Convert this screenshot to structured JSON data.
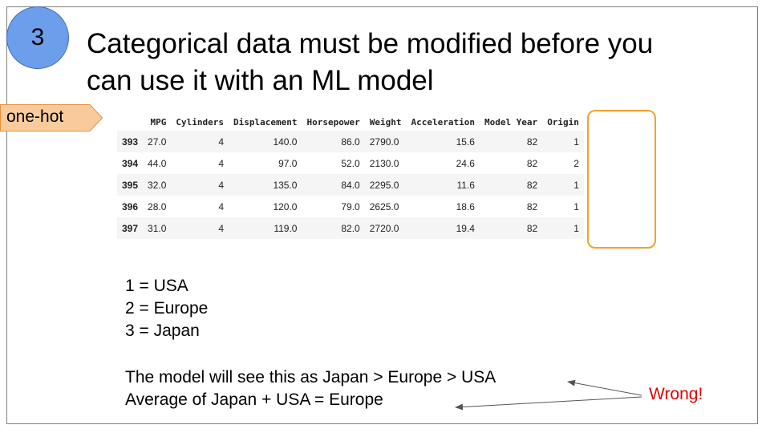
{
  "badge": {
    "number": "3"
  },
  "title": {
    "line1": "Categorical data must be modified before you",
    "line2": "can use it with an ML model"
  },
  "tag": {
    "label": "one-hot"
  },
  "table": {
    "columns": [
      "",
      "MPG",
      "Cylinders",
      "Displacement",
      "Horsepower",
      "Weight",
      "Acceleration",
      "Model Year",
      "Origin"
    ],
    "rows": [
      [
        "393",
        "27.0",
        "4",
        "140.0",
        "86.0",
        "2790.0",
        "15.6",
        "82",
        "1"
      ],
      [
        "394",
        "44.0",
        "4",
        "97.0",
        "52.0",
        "2130.0",
        "24.6",
        "82",
        "2"
      ],
      [
        "395",
        "32.0",
        "4",
        "135.0",
        "84.0",
        "2295.0",
        "11.6",
        "82",
        "1"
      ],
      [
        "396",
        "28.0",
        "4",
        "120.0",
        "79.0",
        "2625.0",
        "18.6",
        "82",
        "1"
      ],
      [
        "397",
        "31.0",
        "4",
        "119.0",
        "82.0",
        "2720.0",
        "19.4",
        "82",
        "1"
      ]
    ]
  },
  "legend": [
    "1 = USA",
    "2 = Europe",
    "3 = Japan"
  ],
  "note": {
    "line1": "The model will see this as Japan > Europe > USA",
    "line2": "Average of Japan + USA = Europe"
  },
  "callout": {
    "label": "Wrong!",
    "color": "#e00000"
  },
  "colors": {
    "badge": "#6d9eeb",
    "tag": "#f9cb9c",
    "highlight": "#f6a02d"
  }
}
